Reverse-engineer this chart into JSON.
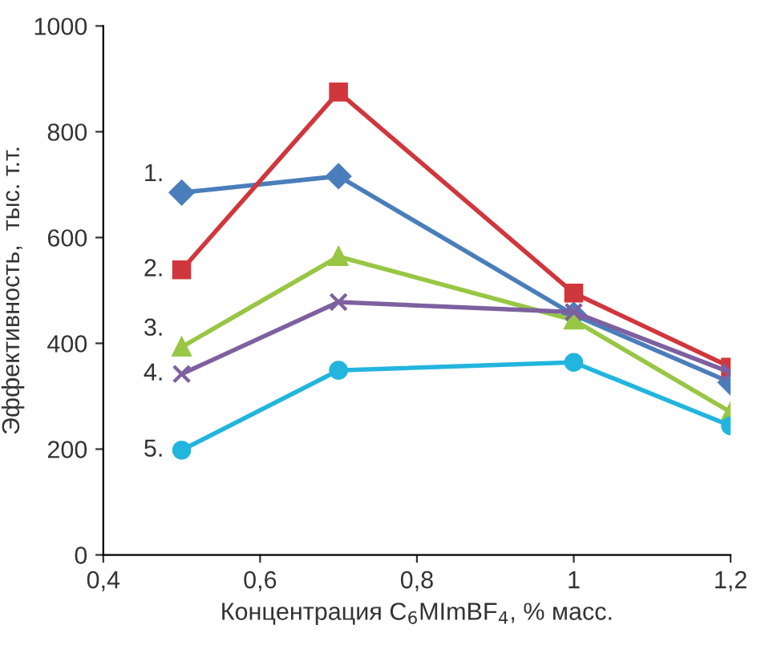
{
  "chart_data": {
    "type": "line",
    "xlabel": "Концентрация C$_{6}$MImBF$_{4}$, % масс.",
    "ylabel": "Эффективность,  тыс. т.т.",
    "xlim": [
      0.4,
      1.2
    ],
    "xticks": [
      {
        "value": 0.4,
        "label": "0,4"
      },
      {
        "value": 0.6,
        "label": "0,6"
      },
      {
        "value": 0.8,
        "label": "0,8"
      },
      1,
      {
        "value": 1.2,
        "label": "1,2"
      }
    ],
    "ylim": [
      0,
      1000
    ],
    "yticks": [
      0,
      200,
      400,
      600,
      800,
      1000
    ],
    "grid": false,
    "legend": false,
    "x": [
      0.5,
      0.7,
      1.0,
      1.2
    ],
    "series": [
      {
        "color": "#4a7ebb",
        "marker": "diamond",
        "values": [
          685,
          716,
          454,
          326
        ]
      },
      {
        "color": "#d0373d",
        "marker": "square",
        "values": [
          539,
          875,
          495,
          355
        ]
      },
      {
        "color": "#98c645",
        "marker": "triangle",
        "values": [
          393,
          564,
          444,
          270
        ]
      },
      {
        "color": "#7d60a0",
        "marker": "cross",
        "values": [
          342,
          478,
          459,
          345
        ]
      },
      {
        "color": "#22b5de",
        "marker": "circle",
        "values": [
          198,
          349,
          364,
          244
        ]
      }
    ],
    "annotations": [
      "1.",
      "2.",
      "3.",
      "4.",
      "5."
    ]
  }
}
